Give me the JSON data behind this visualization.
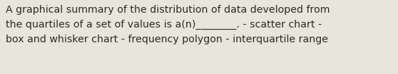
{
  "text_lines": [
    "A graphical summary of the distribution of data developed from",
    "the quartiles of a set of values is a(n)________. - scatter chart -",
    "box and whisker chart - frequency polygon - interquartile range"
  ],
  "background_color": "#e8e5db",
  "text_color": "#2a2a2a",
  "font_size": 10.2,
  "fig_width": 5.58,
  "fig_height": 1.05,
  "fontweight": "normal",
  "linespacing": 1.6
}
